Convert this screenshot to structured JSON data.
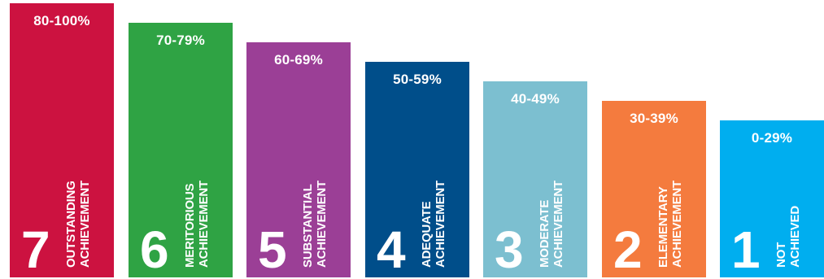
{
  "chart_data": {
    "type": "bar",
    "categories": [
      "7",
      "6",
      "5",
      "4",
      "3",
      "2",
      "1"
    ],
    "bands": [
      {
        "grade": "7",
        "range": "80-100%",
        "line1": "OUTSTANDING",
        "line2": "ACHIEVEMENT",
        "color": "#cc1240",
        "level": 7
      },
      {
        "grade": "6",
        "range": "70-79%",
        "line1": "MERITORIOUS",
        "line2": "ACHIEVEMENT",
        "color": "#2fa344",
        "level": 6
      },
      {
        "grade": "5",
        "range": "60-69%",
        "line1": "SUBSTANTIAL",
        "line2": "ACHIEVEMENT",
        "color": "#9b3f96",
        "level": 5
      },
      {
        "grade": "4",
        "range": "50-59%",
        "line1": "ADEQUATE",
        "line2": "ACHIEVEMENT",
        "color": "#004e8a",
        "level": 4
      },
      {
        "grade": "3",
        "range": "40-49%",
        "line1": "MODERATE",
        "line2": "ACHIEVEMENT",
        "color": "#7cbfd0",
        "level": 3
      },
      {
        "grade": "2",
        "range": "30-39%",
        "line1": "ELEMENTARY",
        "line2": "ACHIEVEMENT",
        "color": "#f47b3e",
        "level": 2
      },
      {
        "grade": "1",
        "range": "0-29%",
        "line1": "NOT",
        "line2": "ACHIEVED",
        "color": "#00aeef",
        "level": 1
      }
    ]
  }
}
